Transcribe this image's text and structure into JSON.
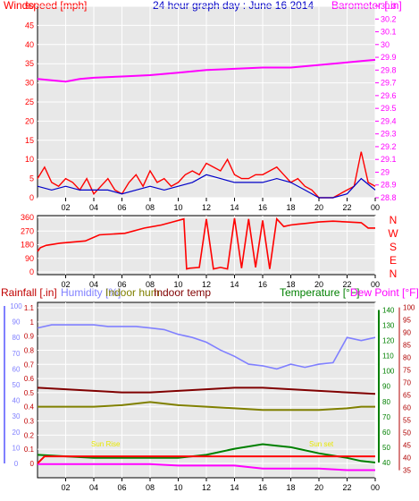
{
  "page_title": "24 hour graph day : June 16 2014",
  "colors": {
    "plot_bg": "#e8e8e8",
    "wind_speed": "#ff0000",
    "wind_avg": "#0000c8",
    "barometer": "#ff00ff",
    "direction": "#ff0000",
    "humidity": "#8080ff",
    "indoor_hum": "#808000",
    "indoor_temp": "#800000",
    "temperature": "#008000",
    "dew_point": "#ff00ff",
    "rainfall": "#ff0000",
    "annotation": "#e8e800",
    "humidity_axis": "#8080ff",
    "temperature_axis": "#008000",
    "dew_axis": "#b00000"
  },
  "chart_data": [
    {
      "id": "wind_baro",
      "type": "line",
      "title": "24 hour graph day : June 16 2014",
      "left_label": "Windspeed [mph]",
      "right_label": "Barometer [.in]",
      "x_ticks": [
        "02",
        "04",
        "06",
        "08",
        "10",
        "12",
        "14",
        "16",
        "18",
        "20",
        "22",
        "00"
      ],
      "x_range_hours": [
        0,
        24
      ],
      "left_axis": {
        "ticks": [
          0,
          5,
          10,
          15,
          20,
          25,
          30,
          35,
          40,
          45,
          50
        ],
        "range": [
          0,
          50
        ]
      },
      "right_axis": {
        "ticks": [
          "28.8",
          "28.9",
          "29",
          "29.1",
          "29.2",
          "29.3",
          "29.4",
          "29.5",
          "29.6",
          "29.7",
          "29.8",
          "29.9",
          "30",
          "30.1",
          "30.2",
          "30.3"
        ],
        "range": [
          28.8,
          30.3
        ]
      },
      "series": [
        {
          "name": "Windspeed",
          "axis": "left",
          "x": [
            0,
            0.5,
            1,
            1.5,
            2,
            2.5,
            3,
            3.5,
            4,
            4.5,
            5,
            5.5,
            6,
            6.5,
            7,
            7.5,
            8,
            8.5,
            9,
            9.5,
            10,
            10.5,
            11,
            11.5,
            12,
            12.5,
            13,
            13.5,
            14,
            14.5,
            15,
            15.5,
            16,
            16.5,
            17,
            17.5,
            18,
            18.5,
            19,
            19.5,
            20,
            20.5,
            21,
            21.5,
            22,
            22.5,
            23,
            23.5,
            24
          ],
          "y": [
            5,
            8,
            4,
            3,
            5,
            4,
            2,
            5,
            1,
            3,
            5,
            2,
            1,
            4,
            6,
            3,
            7,
            4,
            5,
            3,
            4,
            6,
            7,
            6,
            9,
            8,
            7,
            10,
            6,
            5,
            5,
            6,
            6,
            7,
            8,
            6,
            4,
            5,
            3,
            2,
            0,
            0,
            0,
            1,
            2,
            3,
            12,
            4,
            3
          ]
        },
        {
          "name": "Wind average",
          "axis": "left",
          "x": [
            0,
            1,
            2,
            3,
            4,
            5,
            6,
            7,
            8,
            9,
            10,
            11,
            12,
            13,
            14,
            15,
            16,
            17,
            18,
            19,
            20,
            21,
            22,
            23,
            24
          ],
          "y": [
            3,
            2,
            3,
            2,
            2,
            2,
            1,
            2,
            3,
            2,
            3,
            4,
            6,
            5,
            4,
            4,
            4,
            5,
            4,
            2,
            0,
            0,
            1,
            5,
            2
          ]
        },
        {
          "name": "Barometer",
          "axis": "right",
          "x": [
            0,
            1,
            2,
            3,
            4,
            6,
            8,
            10,
            12,
            14,
            16,
            18,
            20,
            22,
            23,
            24
          ],
          "y": [
            29.73,
            29.72,
            29.71,
            29.73,
            29.74,
            29.75,
            29.76,
            29.78,
            29.8,
            29.81,
            29.82,
            29.82,
            29.84,
            29.86,
            29.87,
            29.88
          ]
        }
      ]
    },
    {
      "id": "wind_direction",
      "type": "line",
      "title": "",
      "x_ticks": [
        "02",
        "04",
        "06",
        "08",
        "10",
        "12",
        "14",
        "16",
        "18",
        "20",
        "22",
        "00"
      ],
      "x_range_hours": [
        0,
        24
      ],
      "left_axis": {
        "ticks": [
          0,
          90,
          180,
          270,
          360
        ],
        "range": [
          0,
          360
        ]
      },
      "compass_labels": [
        "N",
        "W",
        "S",
        "E",
        "N"
      ],
      "series": [
        {
          "name": "Wind direction",
          "x": [
            0,
            0.2,
            0.6,
            1.6,
            3.4,
            4.4,
            6.2,
            7.6,
            8.8,
            9.6,
            10.4,
            10.6,
            10.8,
            11.5,
            12.0,
            12.5,
            13.0,
            13.5,
            14.0,
            14.5,
            15.0,
            15.5,
            16.0,
            16.5,
            17.0,
            17.5,
            18.0,
            18.5,
            19.0,
            19.5,
            20.0,
            21.0,
            22.0,
            23.0,
            23.5,
            24.0
          ],
          "y": [
            135,
            160,
            175,
            190,
            205,
            245,
            255,
            290,
            310,
            330,
            350,
            20,
            25,
            30,
            350,
            20,
            30,
            20,
            355,
            25,
            350,
            30,
            340,
            20,
            350,
            300,
            310,
            315,
            320,
            325,
            330,
            335,
            330,
            325,
            290,
            290
          ]
        }
      ]
    },
    {
      "id": "hum_temp_rain",
      "type": "line",
      "title": "",
      "labels": {
        "rainfall": "Rainfall [.in]",
        "humidity": "Humidity [%]",
        "indoor_hum": "Indoor hum",
        "indoor_temp": "Indoor temp",
        "temperature": "Temperature [°F]",
        "dew_point": "Dew Point [°F]"
      },
      "annotations": [
        "Sun Rise",
        "Sun set"
      ],
      "x_ticks": [
        "02",
        "04",
        "06",
        "08",
        "10",
        "12",
        "14",
        "16",
        "18",
        "20",
        "22",
        "00"
      ],
      "x_range_hours": [
        0,
        24
      ],
      "rain_axis": {
        "ticks": [
          "0",
          "0.1",
          "0.2",
          "0.3",
          "0.4",
          "0.5",
          "0.6",
          "0.7",
          "0.8",
          "0.9",
          "1",
          "1.1"
        ],
        "range": [
          0,
          1.1
        ]
      },
      "humidity_axis": {
        "ticks": [
          0,
          10,
          20,
          30,
          40,
          50,
          60,
          70,
          80,
          90,
          100
        ],
        "range": [
          0,
          100
        ]
      },
      "temperature_axis": {
        "ticks": [
          40,
          50,
          60,
          70,
          80,
          90,
          100,
          110,
          120,
          130,
          140
        ],
        "range": [
          30,
          145
        ]
      },
      "dew_axis": {
        "ticks": [
          35,
          40,
          45,
          50,
          55,
          60,
          65,
          70,
          75,
          80,
          85,
          90,
          95,
          100
        ],
        "range": [
          32,
          102
        ]
      },
      "series": [
        {
          "name": "Humidity",
          "axis": "humidity",
          "x": [
            0,
            1,
            2,
            3,
            4,
            5,
            6,
            7,
            8,
            9,
            10,
            11,
            12,
            13,
            14,
            15,
            16,
            17,
            18,
            19,
            20,
            21,
            22,
            23,
            24
          ],
          "y": [
            86,
            88,
            88,
            88,
            88,
            87,
            87,
            87,
            86,
            85,
            82,
            80,
            77,
            72,
            68,
            63,
            62,
            60,
            63,
            61,
            63,
            64,
            80,
            78,
            80
          ]
        },
        {
          "name": "Indoor hum",
          "axis": "humidity",
          "x": [
            0,
            2,
            4,
            6,
            8,
            10,
            12,
            14,
            16,
            18,
            20,
            22,
            23,
            24
          ],
          "y": [
            36,
            36,
            36,
            37,
            39,
            37,
            36,
            35,
            34,
            34,
            34,
            35,
            36,
            36
          ]
        },
        {
          "name": "Indoor temp",
          "axis": "temperature",
          "x": [
            0,
            2,
            4,
            6,
            8,
            10,
            12,
            14,
            16,
            18,
            20,
            22,
            24
          ],
          "y": [
            89,
            88,
            87,
            86,
            86,
            87,
            88,
            89,
            89,
            88,
            87,
            86,
            85
          ]
        },
        {
          "name": "Temperature",
          "axis": "temperature",
          "x": [
            0,
            2,
            4,
            6,
            8,
            10,
            12,
            14,
            16,
            17,
            18,
            20,
            22,
            23,
            24
          ],
          "y": [
            45,
            44,
            43,
            43,
            43,
            43,
            45,
            49,
            52,
            51,
            50,
            46,
            43,
            41,
            40
          ]
        },
        {
          "name": "Dew Point",
          "axis": "temperature",
          "x": [
            0,
            2,
            4,
            6,
            8,
            10,
            12,
            14,
            16,
            18,
            20,
            22,
            23,
            24
          ],
          "y": [
            39,
            39,
            39,
            39,
            39,
            38,
            38,
            38,
            36,
            36,
            36,
            35,
            35,
            35
          ]
        },
        {
          "name": "Rainfall",
          "axis": "rain",
          "x": [
            0,
            0.5,
            24
          ],
          "y": [
            0,
            0.05,
            0.05
          ]
        }
      ]
    }
  ]
}
